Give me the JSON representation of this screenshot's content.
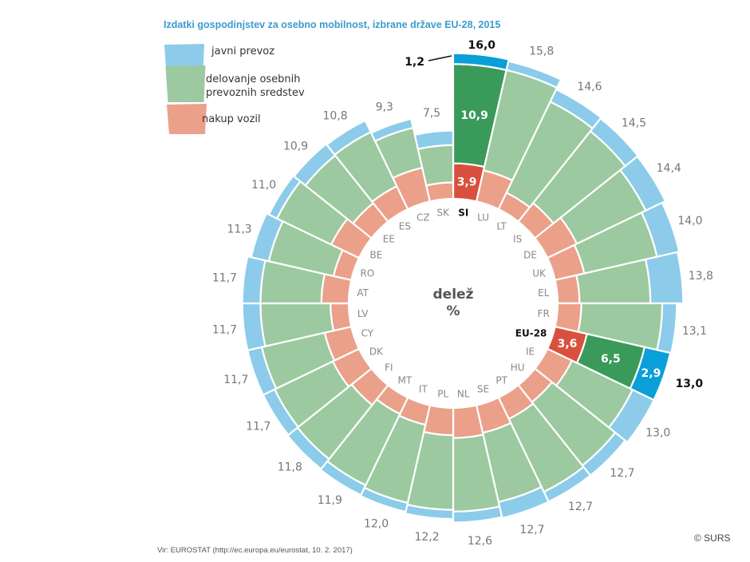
{
  "chart_data": {
    "type": "radial-stacked-bar",
    "title": "Izdatki gospodinjstev za osebno mobilnost, izbrane države EU-28, 2015",
    "center_label": [
      "delež",
      "%"
    ],
    "series": [
      {
        "name": "nakup vozil",
        "color": "#eba08a",
        "highlight_color": "#d9503f"
      },
      {
        "name": "delovanje osebnih prevoznih sredstev",
        "color": "#9cc9a0",
        "highlight_color": "#3a9a5a"
      },
      {
        "name": "javni prevoz",
        "color": "#8ccbea",
        "highlight_color": "#0a9fd8"
      }
    ],
    "highlighted": [
      "SI",
      "EU-28"
    ],
    "categories": [
      "SI",
      "LU",
      "LT",
      "IS",
      "DE",
      "UK",
      "EL",
      "FR",
      "EU-28",
      "IE",
      "HU",
      "PT",
      "SE",
      "NL",
      "PL",
      "IT",
      "MT",
      "FI",
      "DK",
      "CY",
      "LV",
      "AT",
      "RO",
      "BE",
      "EE",
      "ES",
      "CZ",
      "SK"
    ],
    "totals": [
      16.0,
      15.8,
      14.6,
      14.5,
      14.4,
      14.0,
      13.8,
      13.1,
      13.0,
      13.0,
      12.7,
      12.7,
      12.7,
      12.6,
      12.2,
      12.0,
      11.9,
      11.8,
      11.7,
      11.7,
      11.7,
      11.7,
      11.3,
      11.0,
      10.9,
      10.8,
      9.3,
      7.5
    ],
    "values": {
      "nakup vozil": [
        3.9,
        3.5,
        2.0,
        2.6,
        3.6,
        3.3,
        2.4,
        2.6,
        3.6,
        3.0,
        2.4,
        2.6,
        3.1,
        3.3,
        3.0,
        2.2,
        2.0,
        2.8,
        3.2,
        3.0,
        2.0,
        3.0,
        2.0,
        3.4,
        2.6,
        2.8,
        3.8,
        1.8
      ],
      "delovanje osebnih prevoznih sredstev": [
        10.9,
        11.3,
        11.1,
        10.1,
        8.4,
        8.2,
        7.8,
        8.9,
        6.5,
        7.4,
        8.9,
        8.9,
        7.8,
        8.1,
        8.2,
        8.8,
        8.7,
        7.6,
        7.1,
        7.1,
        7.7,
        6.7,
        7.3,
        6.6,
        6.7,
        6.6,
        4.5,
        4.1
      ],
      "javni prevoz": [
        1.2,
        1.0,
        1.5,
        1.8,
        2.4,
        2.5,
        3.6,
        1.6,
        2.9,
        2.6,
        1.4,
        1.2,
        1.8,
        1.2,
        1.0,
        1.0,
        1.2,
        1.4,
        1.4,
        1.6,
        2.0,
        2.0,
        2.0,
        1.0,
        1.6,
        1.4,
        1.0,
        1.6
      ]
    },
    "printed_segment_values": {
      "SI": [
        3.9,
        10.9,
        1.2
      ],
      "EU-28": [
        3.6,
        6.5,
        2.9
      ]
    }
  },
  "legend": {
    "items": [
      "javni prevoz",
      "delovanje osebnih prevoznih sredstev",
      "nakup vozil"
    ],
    "item_lines": [
      [
        "javni prevoz"
      ],
      [
        "delovanje osebnih",
        "prevoznih sredstev"
      ],
      [
        "nakup vozil"
      ]
    ]
  },
  "footer": {
    "source": "Vir: EUROSTAT (http://ec.europa.eu/eurostat, 10. 2. 2017)",
    "copyright": "© SURS"
  }
}
